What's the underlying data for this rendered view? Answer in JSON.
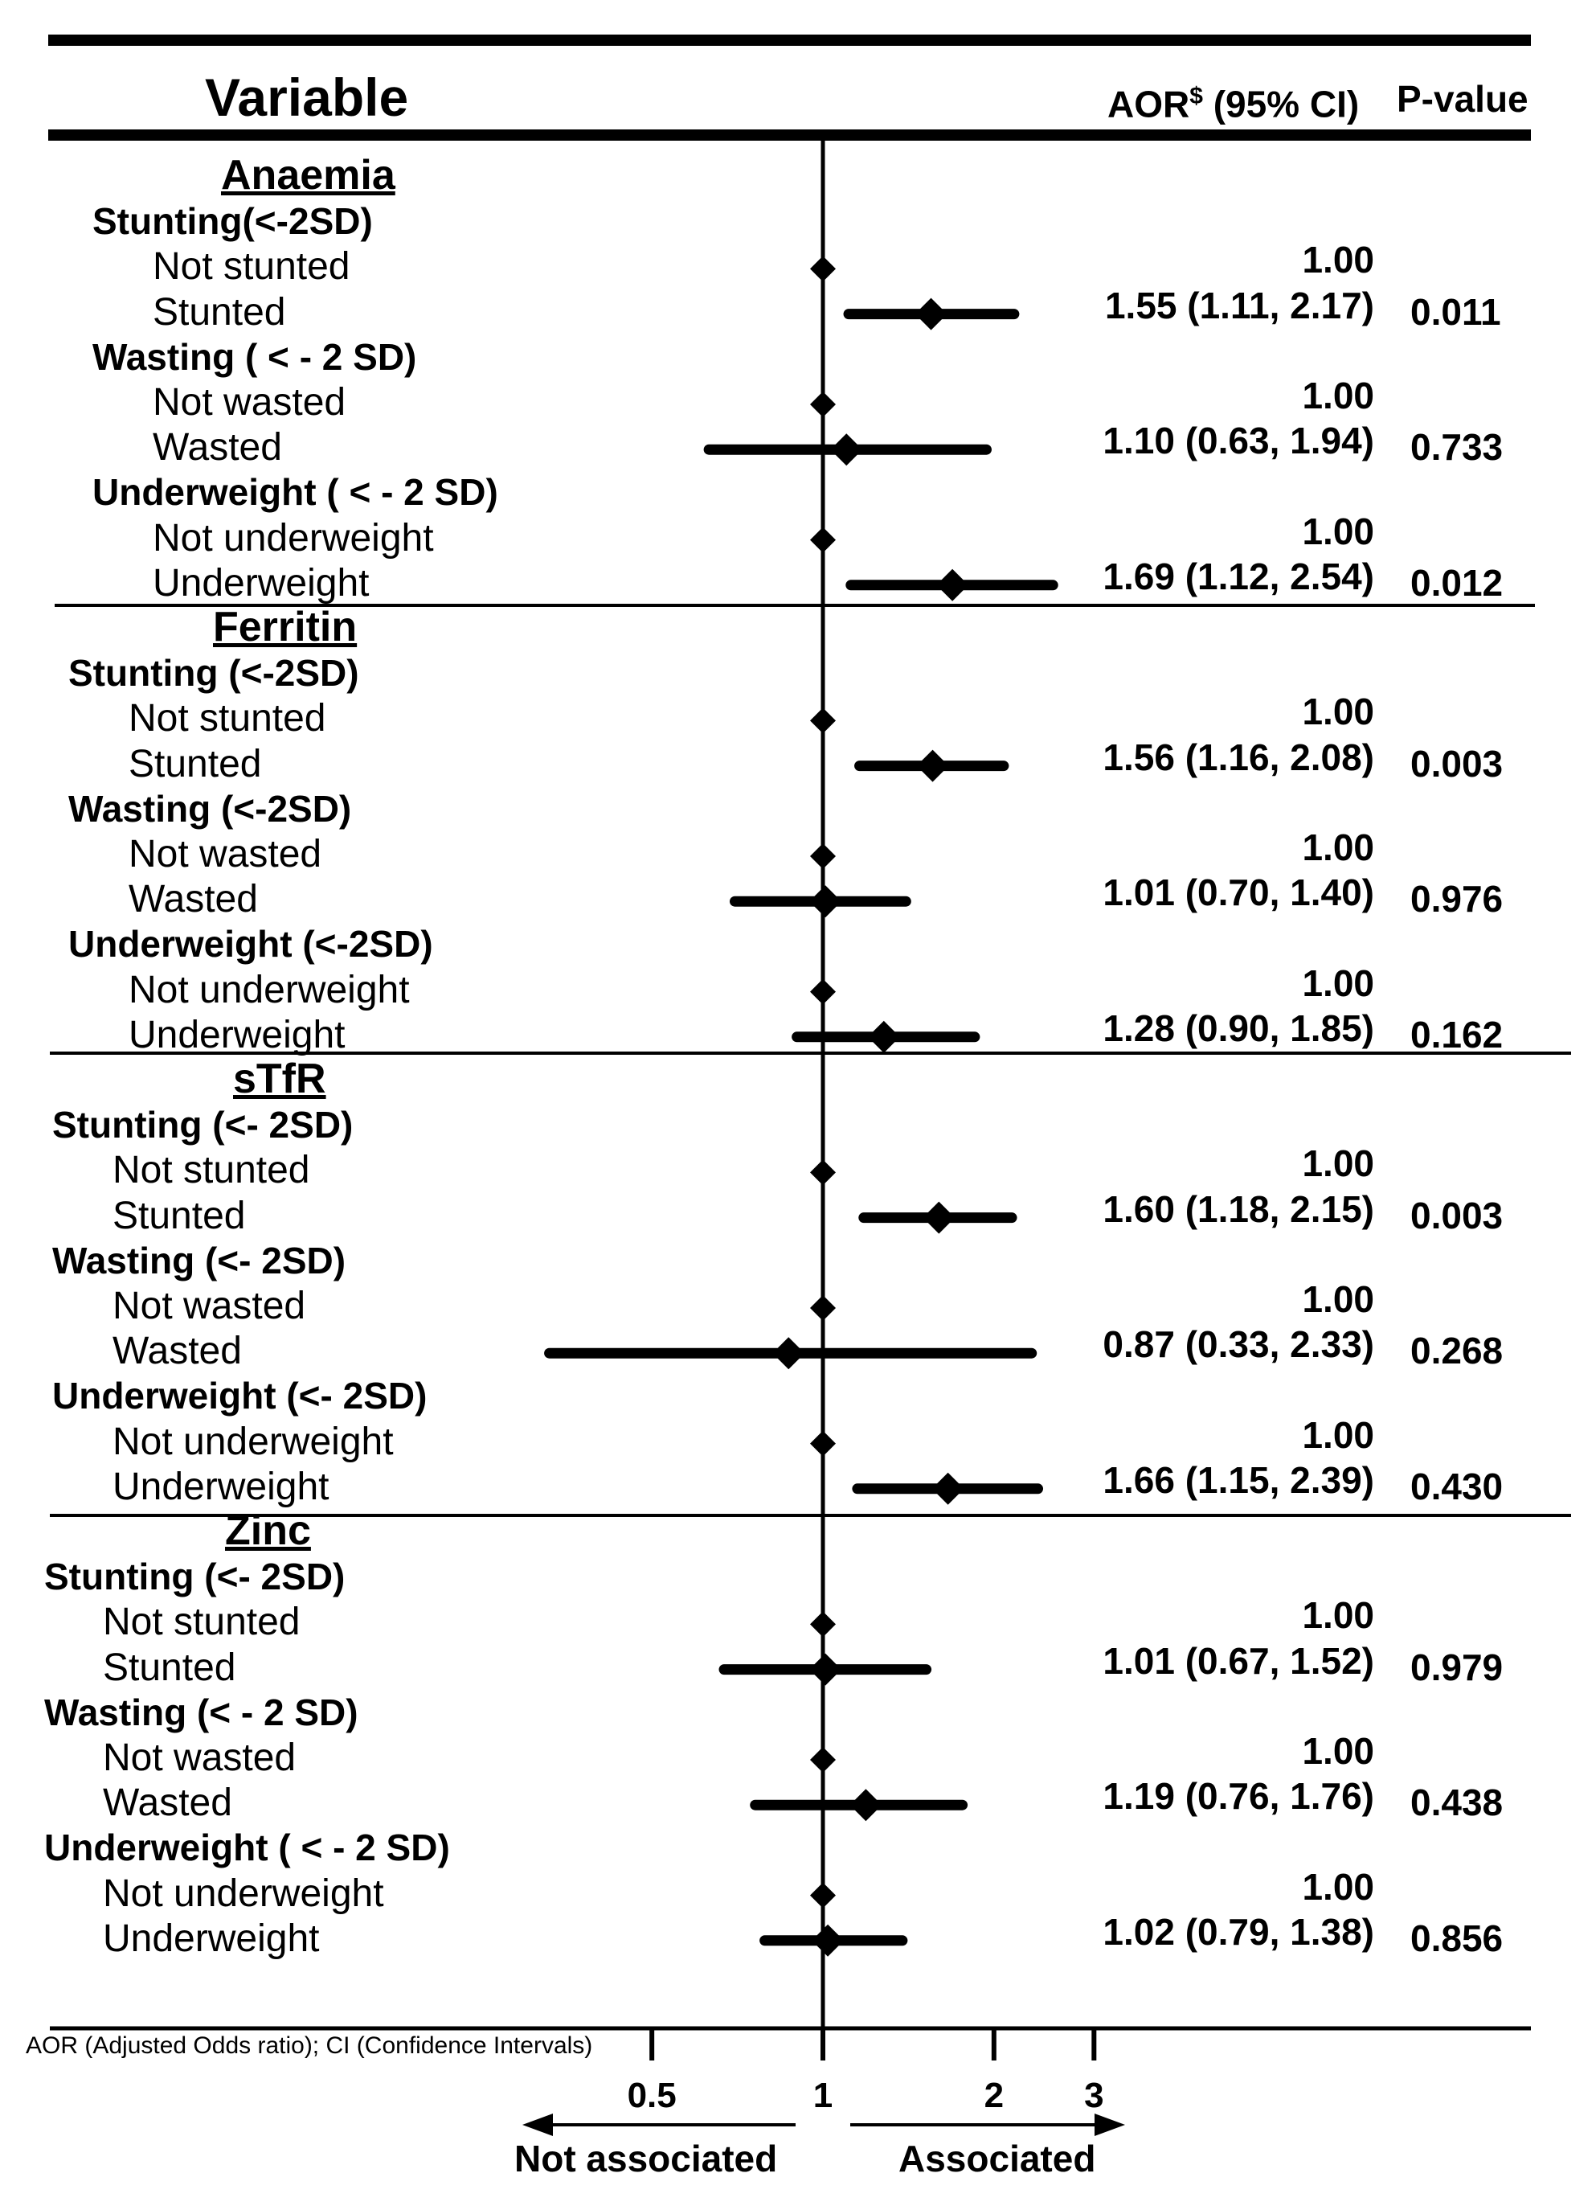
{
  "chart_data": {
    "type": "forest",
    "title": "",
    "headers": {
      "variable": "Variable",
      "aor_prefix": "AOR",
      "aor_superscript": "$",
      "aor_suffix": " (95% CI)",
      "pvalue": "P-value"
    },
    "x_scale": "log",
    "xlim": [
      0.35,
      3.4
    ],
    "reference_value": 1,
    "x_ticks": [
      {
        "value": 0.5,
        "label": "0.5"
      },
      {
        "value": 1,
        "label": "1"
      },
      {
        "value": 2,
        "label": "2"
      },
      {
        "value": 3,
        "label": "3"
      }
    ],
    "arrow_labels": {
      "left": "Not associated",
      "right": "Associated"
    },
    "footnote": "AOR (Adjusted Odds ratio); CI (Confidence Intervals)",
    "sections": [
      {
        "name": "Anaemia",
        "groups": [
          {
            "name": "Stunting(<-2SD)",
            "rows": [
              {
                "label": "Not stunted",
                "est": 1.0,
                "lo": null,
                "hi": null,
                "aor_text": "1.00",
                "p": ""
              },
              {
                "label": "Stunted",
                "est": 1.55,
                "lo": 1.11,
                "hi": 2.17,
                "aor_text": "1.55 (1.11, 2.17)",
                "p": "0.011"
              }
            ]
          },
          {
            "name": "Wasting ( < - 2 SD)",
            "rows": [
              {
                "label": "Not wasted",
                "est": 1.0,
                "lo": null,
                "hi": null,
                "aor_text": "1.00",
                "p": ""
              },
              {
                "label": "Wasted",
                "est": 1.1,
                "lo": 0.63,
                "hi": 1.94,
                "aor_text": "1.10 (0.63, 1.94)",
                "p": "0.733"
              }
            ]
          },
          {
            "name": "Underweight  ( < - 2 SD)",
            "rows": [
              {
                "label": "Not underweight",
                "est": 1.0,
                "lo": null,
                "hi": null,
                "aor_text": "1.00",
                "p": ""
              },
              {
                "label": "Underweight",
                "est": 1.69,
                "lo": 1.12,
                "hi": 2.54,
                "aor_text": "1.69 (1.12, 2.54)",
                "p": "0.012"
              }
            ]
          }
        ]
      },
      {
        "name": "Ferritin",
        "groups": [
          {
            "name": "Stunting (<-2SD)",
            "rows": [
              {
                "label": "Not stunted",
                "est": 1.0,
                "lo": null,
                "hi": null,
                "aor_text": "1.00",
                "p": ""
              },
              {
                "label": "Stunted",
                "est": 1.56,
                "lo": 1.16,
                "hi": 2.08,
                "aor_text": "1.56 (1.16, 2.08)",
                "p": "0.003"
              }
            ]
          },
          {
            "name": "Wasting (<-2SD)",
            "rows": [
              {
                "label": "Not wasted",
                "est": 1.0,
                "lo": null,
                "hi": null,
                "aor_text": "1.00",
                "p": ""
              },
              {
                "label": "Wasted",
                "est": 1.01,
                "lo": 0.7,
                "hi": 1.4,
                "aor_text": "1.01 (0.70, 1.40)",
                "p": "0.976"
              }
            ]
          },
          {
            "name": "Underweight  (<-2SD)",
            "rows": [
              {
                "label": "Not underweight",
                "est": 1.0,
                "lo": null,
                "hi": null,
                "aor_text": "1.00",
                "p": ""
              },
              {
                "label": "Underweight",
                "est": 1.28,
                "lo": 0.9,
                "hi": 1.85,
                "aor_text": "1.28 (0.90, 1.85)",
                "p": "0.162"
              }
            ]
          }
        ]
      },
      {
        "name": "sTfR",
        "groups": [
          {
            "name": "Stunting (<- 2SD)",
            "rows": [
              {
                "label": "Not stunted",
                "est": 1.0,
                "lo": null,
                "hi": null,
                "aor_text": "1.00",
                "p": ""
              },
              {
                "label": "Stunted",
                "est": 1.6,
                "lo": 1.18,
                "hi": 2.15,
                "aor_text": "1.60 (1.18, 2.15)",
                "p": "0.003"
              }
            ]
          },
          {
            "name": "Wasting (<- 2SD)",
            "rows": [
              {
                "label": "Not wasted",
                "est": 1.0,
                "lo": null,
                "hi": null,
                "aor_text": "1.00",
                "p": ""
              },
              {
                "label": "Wasted",
                "est": 0.87,
                "lo": 0.33,
                "hi": 2.33,
                "aor_text": "0.87 (0.33, 2.33)",
                "p": "0.268"
              }
            ]
          },
          {
            "name": "Underweight  (<- 2SD)",
            "rows": [
              {
                "label": "Not underweight",
                "est": 1.0,
                "lo": null,
                "hi": null,
                "aor_text": "1.00",
                "p": ""
              },
              {
                "label": "Underweight",
                "est": 1.66,
                "lo": 1.15,
                "hi": 2.39,
                "aor_text": "1.66 (1.15, 2.39)",
                "p": "0.430"
              }
            ]
          }
        ]
      },
      {
        "name": "Zinc",
        "groups": [
          {
            "name": "Stunting (<- 2SD)",
            "rows": [
              {
                "label": "Not stunted",
                "est": 1.0,
                "lo": null,
                "hi": null,
                "aor_text": "1.00",
                "p": ""
              },
              {
                "label": "Stunted",
                "est": 1.01,
                "lo": 0.67,
                "hi": 1.52,
                "aor_text": "1.01 (0.67, 1.52)",
                "p": "0.979"
              }
            ]
          },
          {
            "name": "Wasting (< - 2 SD)",
            "rows": [
              {
                "label": "Not wasted",
                "est": 1.0,
                "lo": null,
                "hi": null,
                "aor_text": "1.00",
                "p": ""
              },
              {
                "label": "Wasted",
                "est": 1.19,
                "lo": 0.76,
                "hi": 1.76,
                "aor_text": "1.19 (0.76, 1.76)",
                "p": "0.438"
              }
            ]
          },
          {
            "name": "Underweight  ( < - 2 SD)",
            "rows": [
              {
                "label": "Not underweight",
                "est": 1.0,
                "lo": null,
                "hi": null,
                "aor_text": "1.00",
                "p": ""
              },
              {
                "label": "Underweight",
                "est": 1.02,
                "lo": 0.79,
                "hi": 1.38,
                "aor_text": "1.02 (0.79, 1.38)",
                "p": "0.856"
              }
            ]
          }
        ]
      }
    ]
  }
}
